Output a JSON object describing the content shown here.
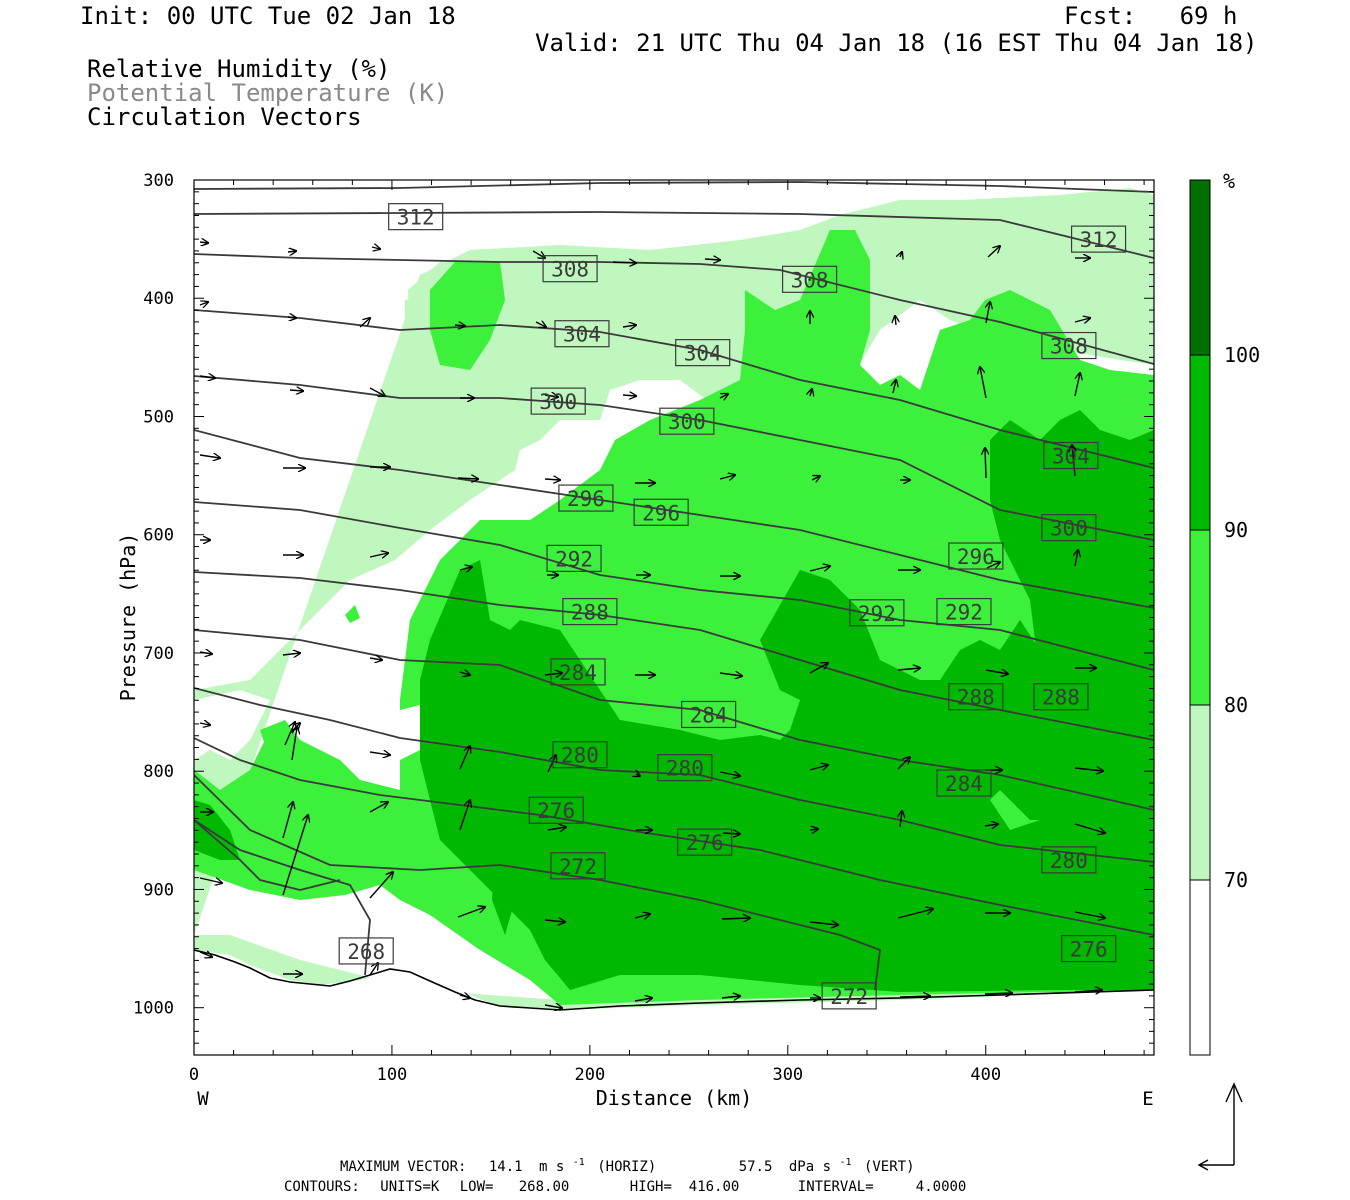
{
  "header": {
    "init": "Init: 00 UTC Tue 02 Jan 18",
    "fcst": "Fcst:   69 h",
    "valid": "Valid: 21 UTC Thu 04 Jan 18 (16 EST Thu 04 Jan 18)",
    "field_rh": "Relative Humidity (%)",
    "field_theta": "Potential Temperature (K)",
    "field_vectors": "Circulation Vectors"
  },
  "colors": {
    "rh_70_80": "#bff7bf",
    "rh_80_90": "#3cf03c",
    "rh_90_100": "#00b800",
    "rh_100": "#007000",
    "theta_line": "#3a3a3a",
    "terrain": "#000000"
  },
  "chart_data": {
    "type": "heatmap",
    "x_axis": {
      "label": "Distance (km)",
      "range": [
        0,
        485
      ],
      "ticks": [
        "0",
        "100",
        "200",
        "300",
        "400"
      ],
      "left_label": "W",
      "right_label": "E"
    },
    "y_axis": {
      "label": "Pressure (hPa)",
      "range": [
        1040,
        300
      ],
      "scale": "linear, inverted",
      "ticks": [
        "300",
        "400",
        "500",
        "600",
        "700",
        "800",
        "900",
        "1000"
      ]
    },
    "colorbar": {
      "unit": "%",
      "levels": [
        "70",
        "80",
        "90",
        "100"
      ],
      "colors": [
        "#ffffff",
        "#bff7bf",
        "#3cf03c",
        "#00b800",
        "#007000"
      ]
    },
    "theta_contours": {
      "units": "K",
      "low": 268,
      "high": 416,
      "interval": 4,
      "labels": [
        {
          "text": "312",
          "x": 112,
          "p": 331
        },
        {
          "text": "312",
          "x": 457,
          "p": 350
        },
        {
          "text": "308",
          "x": 190,
          "p": 375
        },
        {
          "text": "308",
          "x": 311,
          "p": 384
        },
        {
          "text": "308",
          "x": 442,
          "p": 440
        },
        {
          "text": "304",
          "x": 196,
          "p": 430
        },
        {
          "text": "304",
          "x": 257,
          "p": 446
        },
        {
          "text": "304",
          "x": 443,
          "p": 533
        },
        {
          "text": "300",
          "x": 184,
          "p": 487
        },
        {
          "text": "300",
          "x": 249,
          "p": 504
        },
        {
          "text": "300",
          "x": 442,
          "p": 594
        },
        {
          "text": "296",
          "x": 198,
          "p": 569
        },
        {
          "text": "296",
          "x": 236,
          "p": 581
        },
        {
          "text": "296",
          "x": 395,
          "p": 618
        },
        {
          "text": "292",
          "x": 192,
          "p": 620
        },
        {
          "text": "292",
          "x": 345,
          "p": 666
        },
        {
          "text": "292",
          "x": 389,
          "p": 665
        },
        {
          "text": "288",
          "x": 200,
          "p": 665
        },
        {
          "text": "288",
          "x": 395,
          "p": 737
        },
        {
          "text": "288",
          "x": 438,
          "p": 737
        },
        {
          "text": "284",
          "x": 194,
          "p": 716
        },
        {
          "text": "284",
          "x": 260,
          "p": 752
        },
        {
          "text": "284",
          "x": 389,
          "p": 810
        },
        {
          "text": "280",
          "x": 195,
          "p": 786
        },
        {
          "text": "280",
          "x": 248,
          "p": 797
        },
        {
          "text": "280",
          "x": 442,
          "p": 875
        },
        {
          "text": "276",
          "x": 183,
          "p": 833
        },
        {
          "text": "276",
          "x": 258,
          "p": 860
        },
        {
          "text": "276",
          "x": 452,
          "p": 950
        },
        {
          "text": "272",
          "x": 194,
          "p": 880
        },
        {
          "text": "272",
          "x": 331,
          "p": 990
        },
        {
          "text": "268",
          "x": 87,
          "p": 952
        }
      ]
    },
    "vectors": {
      "maximum_vector_label": "MAXIMUM VECTOR:",
      "horiz_value": "14.1",
      "horiz_unit": "m s",
      "horiz_tag": "(HORIZ)",
      "vert_value": "57.5",
      "vert_unit": "dPa s",
      "vert_tag": "(VERT)",
      "exponent": "-1"
    },
    "footer": {
      "contours_label": "CONTOURS:",
      "units": "UNITS=K",
      "low": "LOW=   268.00",
      "high": "HIGH=  416.00",
      "interval": "INTERVAL=     4.0000"
    }
  }
}
